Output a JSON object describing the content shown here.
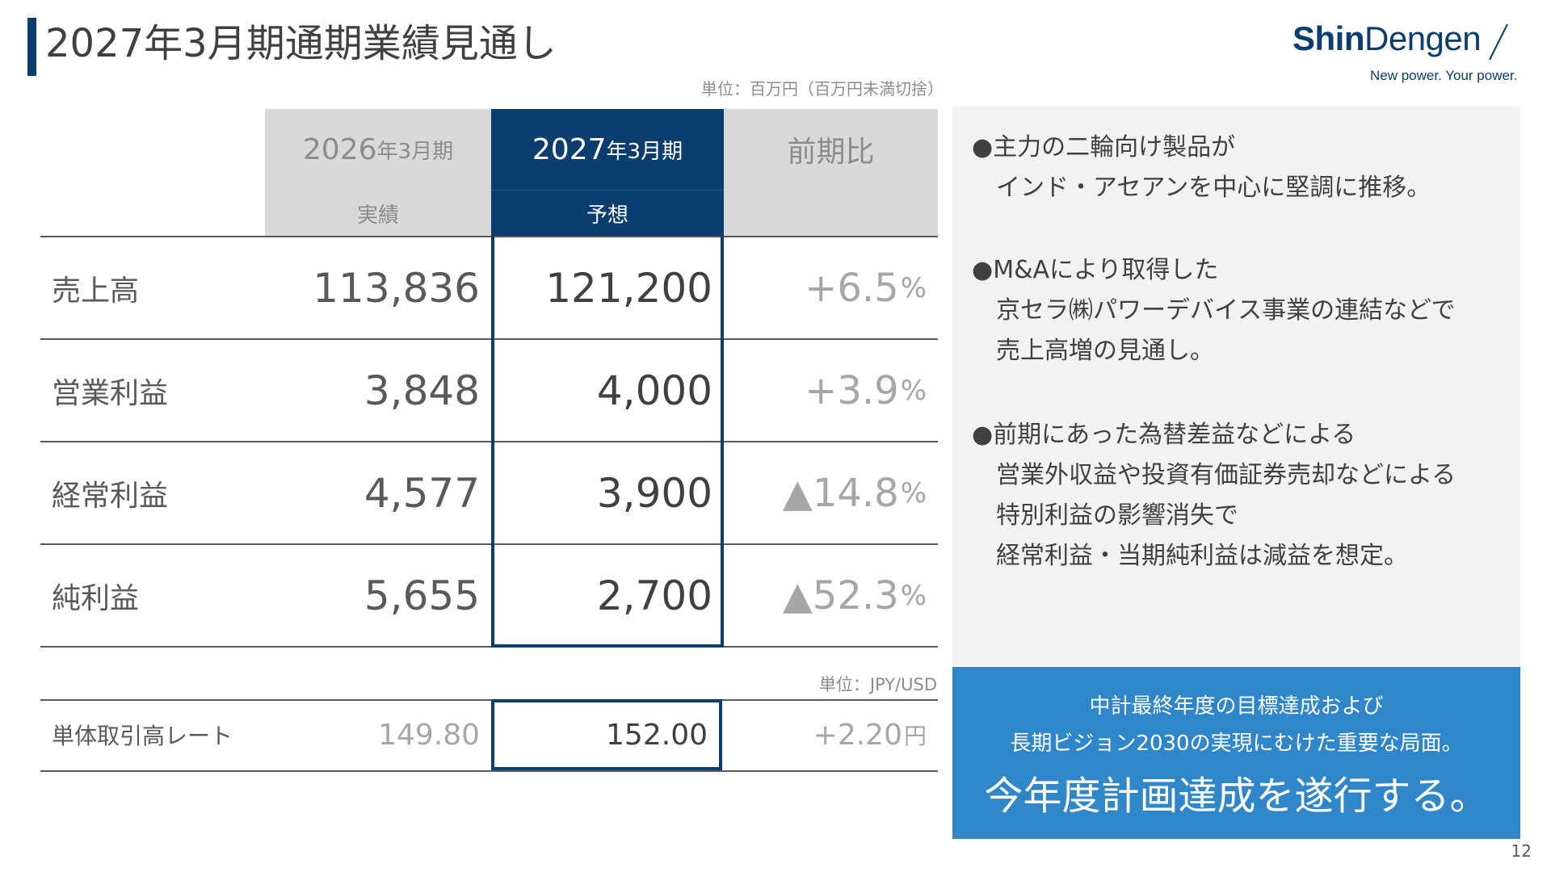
{
  "title": "2027年3月期通期業績見通し",
  "logo": {
    "name_bold": "Shin",
    "name_regular": "Dengen",
    "tagline": "New power. Your power.",
    "color": "#0b3d6e"
  },
  "unit_main": "単位：百万円（百万円未満切捨）",
  "unit_rate": "単位：JPY/USD",
  "columns": [
    {
      "top_num": "2026",
      "top_suffix": "年3月期",
      "sub": "実績"
    },
    {
      "top_num": "2027",
      "top_suffix": "年3月期",
      "sub": "予想"
    },
    {
      "top": "前期比"
    }
  ],
  "rows": [
    {
      "label": "売上高",
      "fy2026": "113,836",
      "fy2027": "121,200",
      "change": "+6.5",
      "unit": "%"
    },
    {
      "label": "営業利益",
      "fy2026": "3,848",
      "fy2027": "4,000",
      "change": "+3.9",
      "unit": "%"
    },
    {
      "label": "経常利益",
      "fy2026": "4,577",
      "fy2027": "3,900",
      "change": "▲14.8",
      "unit": "%"
    },
    {
      "label": "純利益",
      "fy2026": "5,655",
      "fy2027": "2,700",
      "change": "▲52.3",
      "unit": "%"
    }
  ],
  "rate_row": {
    "label": "単体取引高レート",
    "fy2026": "149.80",
    "fy2027": "152.00",
    "change": "+2.20",
    "unit": "円"
  },
  "notes": [
    {
      "bullet": "●",
      "lines": [
        "主力の二輪向け製品が",
        "インド・アセアンを中心に堅調に推移。"
      ]
    },
    {
      "bullet": "●",
      "lines": [
        "M&Aにより取得した",
        "京セラ㈱パワーデバイス事業の連結などで",
        "売上高増の見通し。"
      ]
    },
    {
      "bullet": "●",
      "lines": [
        "前期にあった為替差益などによる",
        "営業外収益や投資有価証券売却などによる",
        "特別利益の影響消失で",
        "経常利益・当期純利益は減益を想定。"
      ]
    }
  ],
  "callout": {
    "line1": "中計最終年度の目標達成および",
    "line2": "長期ビジョン2030の実現にむけた重要な局面。",
    "line3": "今年度計画達成を遂行する。",
    "color": "#2f86c8"
  },
  "page_number": "12",
  "colors": {
    "navy": "#0b3d6e",
    "header_gray": "#d9d9d9",
    "panel_gray": "#f2f2f2"
  }
}
